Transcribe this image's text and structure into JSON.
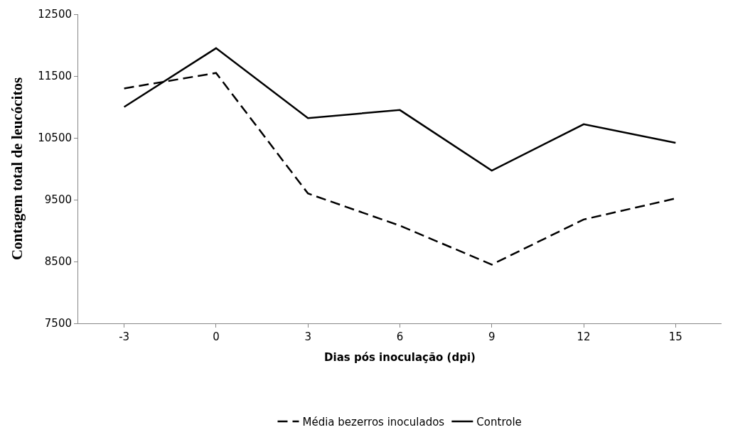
{
  "chart_data": {
    "type": "line",
    "xlabel": "Dias pós inoculação (dpi)",
    "ylabel": "Contagem total de leucócitos",
    "categories": [
      "-3",
      "0",
      "3",
      "6",
      "9",
      "12",
      "15"
    ],
    "ylim": [
      7500,
      12500
    ],
    "yticks": [
      7500,
      8500,
      9500,
      10500,
      11500,
      12500
    ],
    "legend": "bottom",
    "marker": "none",
    "series": [
      {
        "name": "Média bezerros inoculados",
        "color": "#000000",
        "line_style": "dashed",
        "values": [
          11300,
          11550,
          9600,
          9080,
          8450,
          9180,
          9520
        ]
      },
      {
        "name": "Controle",
        "color": "#000000",
        "line_style": "solid",
        "values": [
          11000,
          11950,
          10820,
          10950,
          9970,
          10720,
          10420
        ]
      }
    ]
  }
}
